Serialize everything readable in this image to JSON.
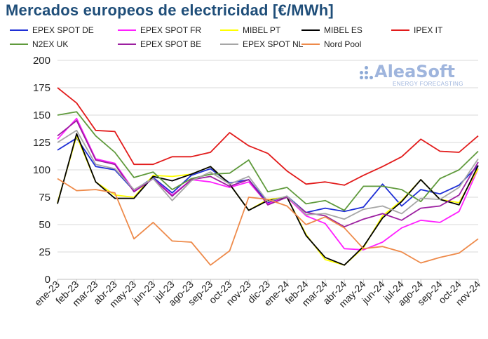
{
  "chart_data": {
    "type": "line",
    "title": "Mercados europeos de electricidad [€/MWh]",
    "categories": [
      "ene-23",
      "feb-23",
      "mar-23",
      "abr-23",
      "may-23",
      "jun-23",
      "jul-23",
      "ago-23",
      "sep-23",
      "oct-23",
      "nov-23",
      "dic-23",
      "ene-24",
      "feb-24",
      "mar-24",
      "abr-24",
      "may-24",
      "jun-24",
      "jul-24",
      "ago-24",
      "sep-24",
      "oct-24",
      "nov-24"
    ],
    "y_ticks": [
      "0",
      "25",
      "50",
      "75",
      "100",
      "125",
      "150",
      "175",
      "200"
    ],
    "ylim": [
      0,
      200
    ],
    "grid": true,
    "legend_position": "top",
    "series": [
      {
        "name": "EPEX SPOT DE",
        "color": "#1f2fd6",
        "values": [
          118,
          129,
          103,
          100,
          81,
          93,
          79,
          95,
          101,
          88,
          91,
          70,
          76,
          61,
          65,
          62,
          66,
          87,
          67,
          82,
          78,
          86,
          104
        ]
      },
      {
        "name": "EPEX SPOT FR",
        "color": "#ff1fff",
        "values": [
          128,
          147,
          110,
          106,
          81,
          92,
          77,
          91,
          89,
          84,
          89,
          69,
          75,
          58,
          51,
          28,
          27,
          34,
          47,
          54,
          52,
          62,
          101
        ]
      },
      {
        "name": "MIBEL PT",
        "color": "#ffff00",
        "values": [
          70,
          131,
          89,
          77,
          75,
          95,
          94,
          96,
          103,
          87,
          63,
          73,
          75,
          41,
          18,
          13,
          29,
          58,
          72,
          91,
          73,
          70,
          101
        ]
      },
      {
        "name": "MIBEL ES",
        "color": "#000000",
        "values": [
          69,
          133,
          89,
          74,
          74,
          94,
          90,
          96,
          103,
          87,
          63,
          72,
          75,
          40,
          20,
          13,
          30,
          56,
          71,
          91,
          73,
          68,
          104
        ]
      },
      {
        "name": "IPEX IT",
        "color": "#e21b1b",
        "values": [
          175,
          161,
          136,
          135,
          105,
          105,
          112,
          112,
          116,
          134,
          122,
          115,
          99,
          87,
          89,
          86,
          95,
          103,
          112,
          128,
          117,
          116,
          131
        ]
      },
      {
        "name": "N2EX UK",
        "color": "#5f9a3c",
        "values": [
          150,
          153,
          131,
          116,
          93,
          98,
          82,
          92,
          96,
          97,
          109,
          80,
          84,
          69,
          72,
          63,
          85,
          85,
          82,
          71,
          92,
          100,
          117
        ]
      },
      {
        "name": "EPEX SPOT BE",
        "color": "#9c1fa0",
        "values": [
          131,
          145,
          109,
          105,
          80,
          92,
          76,
          91,
          94,
          85,
          91,
          68,
          75,
          61,
          58,
          48,
          55,
          60,
          54,
          65,
          67,
          77,
          107
        ]
      },
      {
        "name": "EPEX SPOT NL",
        "color": "#a6a6a6",
        "values": [
          125,
          136,
          105,
          101,
          82,
          92,
          72,
          90,
          98,
          87,
          94,
          71,
          76,
          59,
          60,
          55,
          64,
          67,
          60,
          74,
          73,
          84,
          110
        ]
      },
      {
        "name": "Nord Pool",
        "color": "#ee8a4a",
        "values": [
          92,
          81,
          82,
          79,
          37,
          52,
          35,
          34,
          13,
          26,
          75,
          73,
          67,
          50,
          57,
          47,
          28,
          30,
          25,
          15,
          20,
          24,
          37
        ]
      }
    ]
  },
  "logo": {
    "name": "AleaSoft",
    "tagline": "ENERGY FORECASTING"
  }
}
